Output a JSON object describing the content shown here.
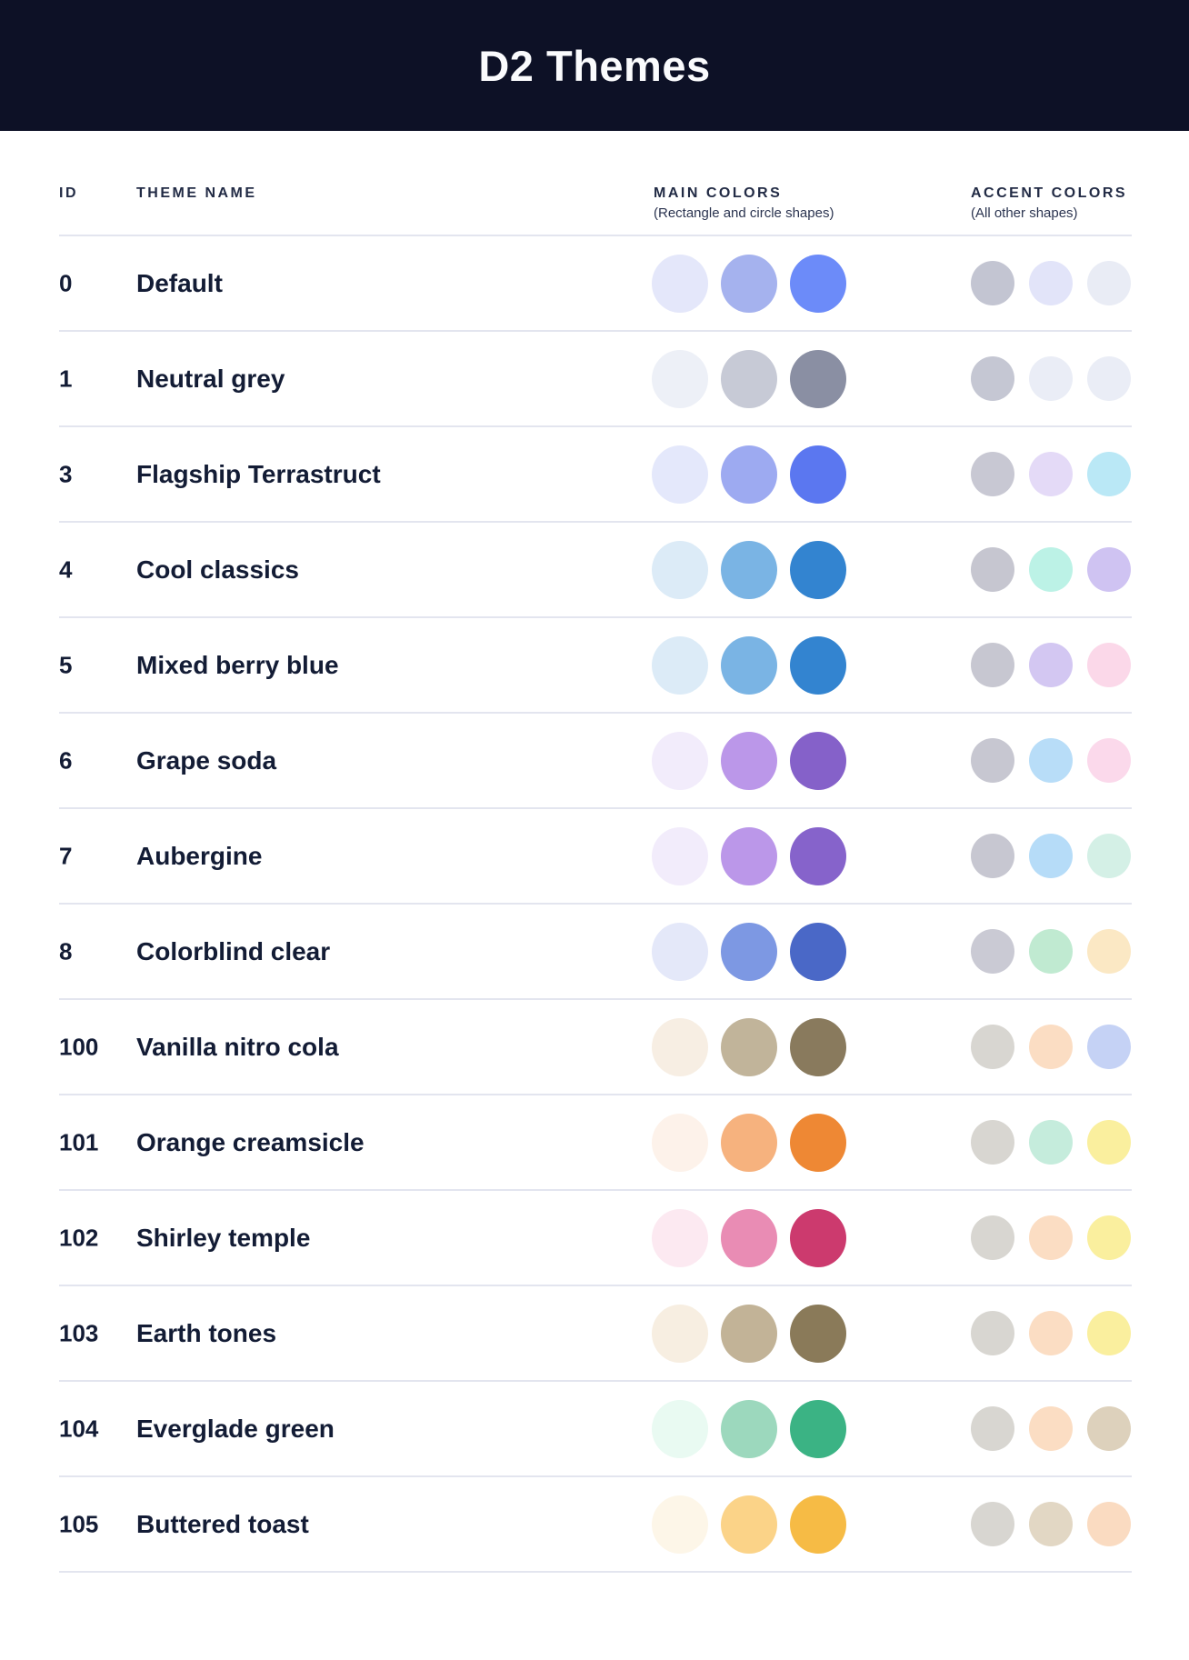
{
  "header": {
    "title": "D2 Themes"
  },
  "table": {
    "columns": {
      "id": "ID",
      "theme_name": "THEME NAME",
      "main_colors": "MAIN COLORS",
      "main_colors_sub": "(Rectangle and circle shapes)",
      "accent_colors": "ACCENT COLORS",
      "accent_colors_sub": "(All other shapes)"
    },
    "rows": [
      {
        "id": "0",
        "name": "Default",
        "main": [
          "#E4E7FA",
          "#A5B2EE",
          "#6C8BF9"
        ],
        "accent": [
          "#C3C5D2",
          "#E2E4F9",
          "#E9ECF5"
        ]
      },
      {
        "id": "1",
        "name": "Neutral grey",
        "main": [
          "#EDF0F7",
          "#C7CAD6",
          "#8A8FA3"
        ],
        "accent": [
          "#C5C7D3",
          "#EAEDF6",
          "#EAEDF6"
        ]
      },
      {
        "id": "3",
        "name": "Flagship Terrastruct",
        "main": [
          "#E4E8FB",
          "#9DAAF1",
          "#5B77F0"
        ],
        "accent": [
          "#C8C8D3",
          "#E4DAF7",
          "#BAE8F6"
        ]
      },
      {
        "id": "4",
        "name": "Cool classics",
        "main": [
          "#DCEBF7",
          "#7AB4E4",
          "#3384D0"
        ],
        "accent": [
          "#C6C6D0",
          "#BCF2E6",
          "#CFC3F2"
        ]
      },
      {
        "id": "5",
        "name": "Mixed berry blue",
        "main": [
          "#DCEBF7",
          "#7AB4E4",
          "#3384D0"
        ],
        "accent": [
          "#C7C7D1",
          "#D3C7F2",
          "#FBD8E9"
        ]
      },
      {
        "id": "6",
        "name": "Grape soda",
        "main": [
          "#F2ECFB",
          "#BB97E9",
          "#8561C9"
        ],
        "accent": [
          "#C7C7D1",
          "#B8DDF8",
          "#FBD9EB"
        ]
      },
      {
        "id": "7",
        "name": "Aubergine",
        "main": [
          "#F2ECFB",
          "#BB97E9",
          "#8663CB"
        ],
        "accent": [
          "#C7C7D1",
          "#B6DCF8",
          "#D4F0E6"
        ]
      },
      {
        "id": "8",
        "name": "Colorblind clear",
        "main": [
          "#E4E8F9",
          "#7D98E3",
          "#4A68C7"
        ],
        "accent": [
          "#CACAD4",
          "#C0EAD1",
          "#FBE8C4"
        ]
      },
      {
        "id": "100",
        "name": "Vanilla nitro cola",
        "main": [
          "#F7EEE3",
          "#C1B49A",
          "#897A5D"
        ],
        "accent": [
          "#D8D6D1",
          "#FBDDC3",
          "#C5D2F5"
        ]
      },
      {
        "id": "101",
        "name": "Orange creamsicle",
        "main": [
          "#FDF2EA",
          "#F6B27E",
          "#EE8834"
        ],
        "accent": [
          "#D8D6D1",
          "#C5ECDC",
          "#FAEF9E"
        ]
      },
      {
        "id": "102",
        "name": "Shirley temple",
        "main": [
          "#FCE9F1",
          "#E98CB4",
          "#CC3A6E"
        ],
        "accent": [
          "#D8D6D1",
          "#FBDDC3",
          "#FAEF9E"
        ]
      },
      {
        "id": "103",
        "name": "Earth tones",
        "main": [
          "#F7EEE1",
          "#C2B397",
          "#8A7A59"
        ],
        "accent": [
          "#D8D6D1",
          "#FBDDC3",
          "#FAEF9E"
        ]
      },
      {
        "id": "104",
        "name": "Everglade green",
        "main": [
          "#E9FAF2",
          "#9CD8BD",
          "#3BB384"
        ],
        "accent": [
          "#D8D6D1",
          "#FBDDC3",
          "#DDD1BC"
        ]
      },
      {
        "id": "105",
        "name": "Buttered toast",
        "main": [
          "#FDF6E8",
          "#FBD388",
          "#F6BB45"
        ],
        "accent": [
          "#D8D6D1",
          "#E2D7C4",
          "#FADBC1"
        ]
      }
    ]
  },
  "colors": {
    "band_bg": "#0D1126",
    "title_text": "#FAFBFD",
    "body_text": "#131C35",
    "divider": "#E3E5EF"
  }
}
